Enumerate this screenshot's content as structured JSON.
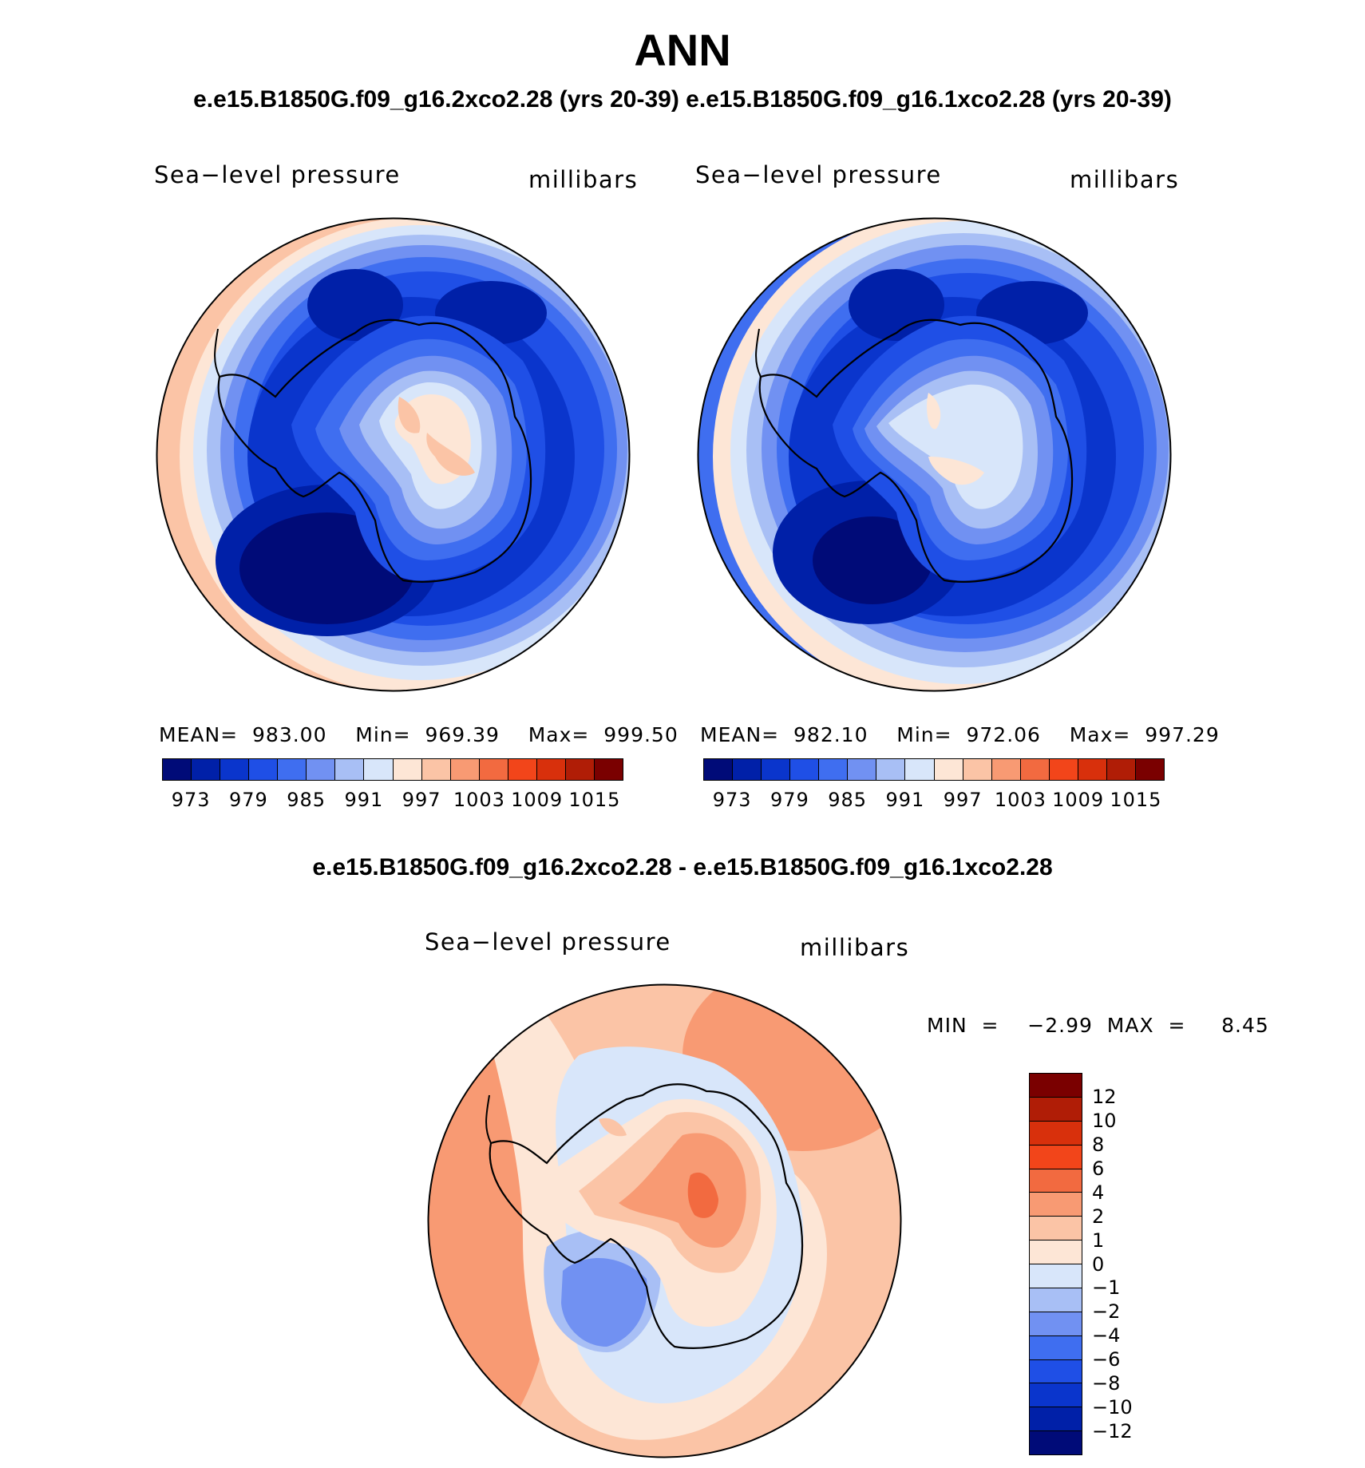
{
  "page": {
    "title": "ANN",
    "subtitle": "e.e15.B1850G.f09_g16.2xco2.28 (yrs 20-39) e.e15.B1850G.f09_g16.1xco2.28 (yrs 20-39)",
    "difference_title": "e.e15.B1850G.f09_g16.2xco2.28 - e.e15.B1850G.f09_g16.1xco2.28"
  },
  "panels": [
    {
      "variable": "Sea−level pressure",
      "units": "millibars",
      "stats": "MEAN=  983.00    Min=  969.39    Max=  999.50"
    },
    {
      "variable": "Sea−level pressure",
      "units": "millibars",
      "stats": "MEAN=  982.10    Min=  972.06    Max=  997.29"
    }
  ],
  "difference_panel": {
    "variable": "Sea−level pressure",
    "units": "millibars",
    "minmax": "MIN  =    −2.99  MAX  =     8.45"
  },
  "colorbar_abs": {
    "labels": [
      "973",
      "979",
      "985",
      "991",
      "997",
      "1003",
      "1009",
      "1015"
    ],
    "colors": [
      "#000b78",
      "#0020a8",
      "#0a35cc",
      "#1f4fe6",
      "#3f6ef0",
      "#7191f2",
      "#a8bff5",
      "#d8e6fa",
      "#fde6d6",
      "#fbc4a6",
      "#f89a73",
      "#f26a40",
      "#f2451a",
      "#d8300c",
      "#b01d06",
      "#7a0000"
    ]
  },
  "colorbar_diff": {
    "labels": [
      "12",
      "10",
      "8",
      "6",
      "4",
      "2",
      "1",
      "0",
      "−1",
      "−2",
      "−4",
      "−6",
      "−8",
      "−10",
      "−12"
    ],
    "colors": [
      "#7a0000",
      "#b01d06",
      "#d8300c",
      "#f2451a",
      "#f26a40",
      "#f89a73",
      "#fbc4a6",
      "#fde6d6",
      "#d8e6fa",
      "#a8bff5",
      "#7191f2",
      "#3f6ef0",
      "#1f4fe6",
      "#0a35cc",
      "#0020a8",
      "#000b78"
    ]
  },
  "map_colors": {
    "ring": [
      "#fbc4a6",
      "#fde6d6",
      "#d8e6fa",
      "#a8bff5",
      "#7191f2",
      "#3f6ef0",
      "#1f4fe6",
      "#0a35cc"
    ],
    "deep_low": "#000b78",
    "diff_ring": [
      "#f89a73",
      "#fbc4a6",
      "#fde6d6",
      "#d8e6fa"
    ],
    "diff_low": "#7191f2"
  }
}
